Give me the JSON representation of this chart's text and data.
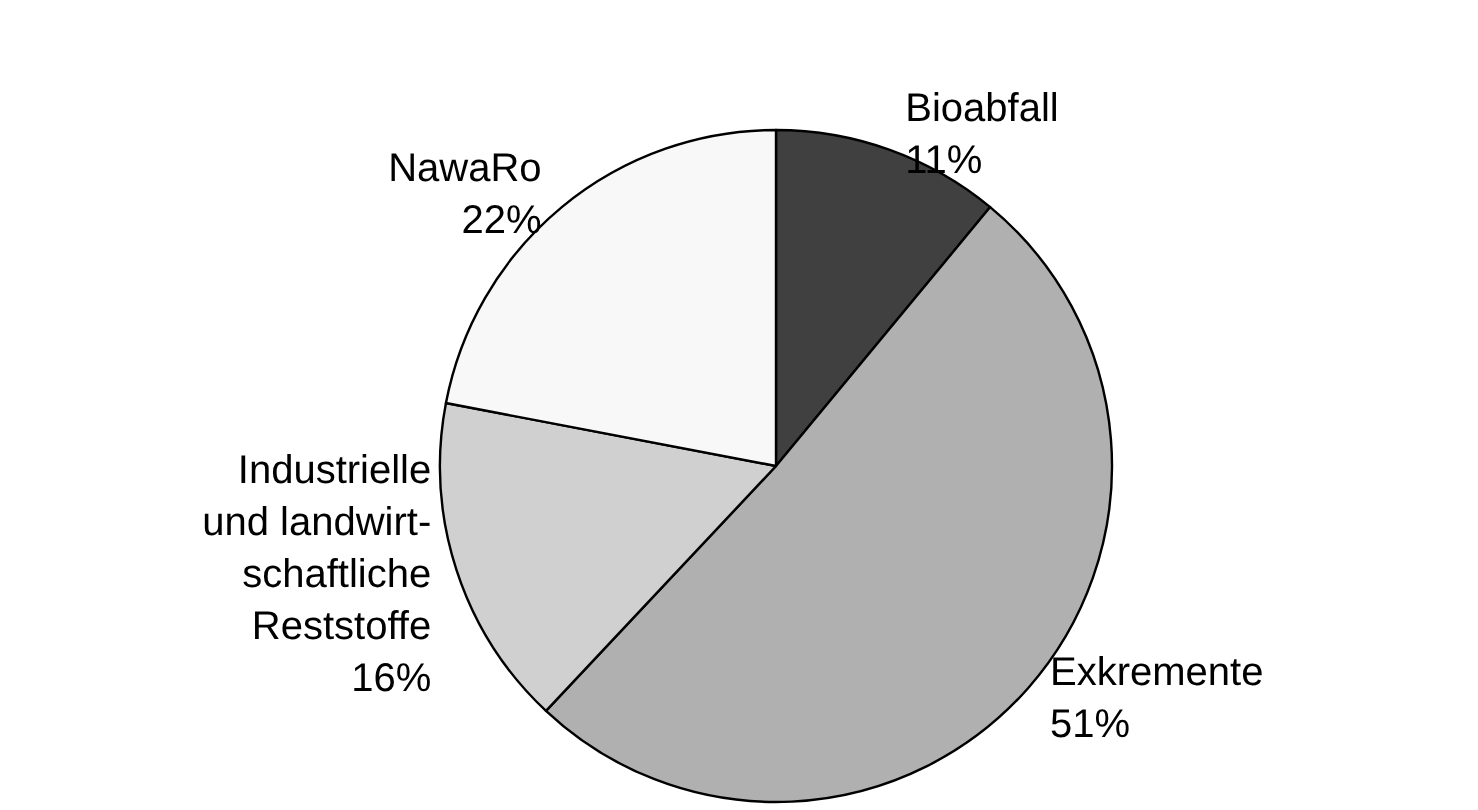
{
  "chart_data": {
    "type": "pie",
    "categories": [
      "Bioabfall",
      "Exkremente",
      "Industrielle\nund landwirt-\nschaftliche\nReststoffe",
      "NawaRo"
    ],
    "values": [
      11,
      51,
      16,
      22
    ],
    "colors": [
      "#404040",
      "#b0b0b0",
      "#d0d0d0",
      "#f8f8f8"
    ],
    "value_labels": [
      "11%",
      "51%",
      "16%",
      "22%"
    ],
    "legend": false
  }
}
